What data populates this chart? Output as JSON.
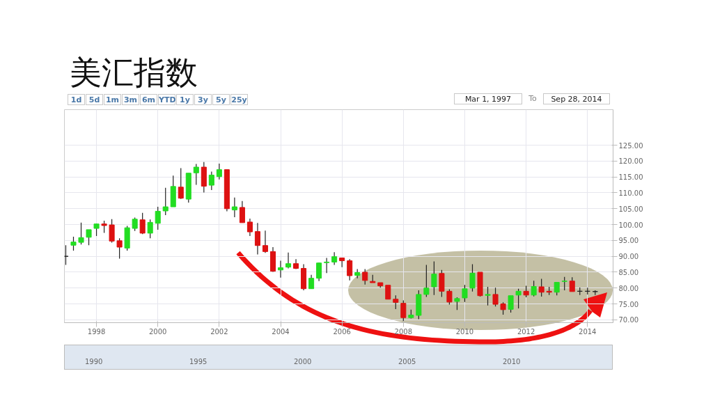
{
  "chart_data": {
    "type": "candlestick",
    "title": "美汇指数",
    "x": [
      "1997-01",
      "1997-04",
      "1997-07",
      "1997-10",
      "1998-01",
      "1998-04",
      "1998-07",
      "1998-10",
      "1999-01",
      "1999-04",
      "1999-07",
      "1999-10",
      "2000-01",
      "2000-04",
      "2000-07",
      "2000-10",
      "2001-01",
      "2001-04",
      "2001-07",
      "2001-10",
      "2002-01",
      "2002-04",
      "2002-07",
      "2002-10",
      "2003-01",
      "2003-04",
      "2003-07",
      "2003-10",
      "2004-01",
      "2004-04",
      "2004-07",
      "2004-10",
      "2005-01",
      "2005-04",
      "2005-07",
      "2005-10",
      "2006-01",
      "2006-04",
      "2006-07",
      "2006-10",
      "2007-01",
      "2007-04",
      "2007-07",
      "2007-10",
      "2008-01",
      "2008-04",
      "2008-07",
      "2008-10",
      "2009-01",
      "2009-04",
      "2009-07",
      "2009-10",
      "2010-01",
      "2010-04",
      "2010-07",
      "2010-10",
      "2011-01",
      "2011-04",
      "2011-07",
      "2011-10",
      "2012-01",
      "2012-04",
      "2012-07",
      "2012-10",
      "2013-01",
      "2013-04",
      "2013-07",
      "2013-10",
      "2014-01",
      "2014-04"
    ],
    "ohlc": [
      [
        90.0,
        93.5,
        87.3,
        90.0
      ],
      [
        93.5,
        96.2,
        91.8,
        94.5
      ],
      [
        94.4,
        100.6,
        93.7,
        95.9
      ],
      [
        96.0,
        98.4,
        93.5,
        98.4
      ],
      [
        98.8,
        100.3,
        96.4,
        100.2
      ],
      [
        100.2,
        101.2,
        97.4,
        99.7
      ],
      [
        99.9,
        101.7,
        94.3,
        94.8
      ],
      [
        94.9,
        95.7,
        89.3,
        92.9
      ],
      [
        92.6,
        99.6,
        91.8,
        99.0
      ],
      [
        98.8,
        102.2,
        98.0,
        101.7
      ],
      [
        101.5,
        103.7,
        97.0,
        97.3
      ],
      [
        97.3,
        101.6,
        95.7,
        100.7
      ],
      [
        100.4,
        105.6,
        98.4,
        104.2
      ],
      [
        104.3,
        111.6,
        103.0,
        105.6
      ],
      [
        105.6,
        115.4,
        105.6,
        112.0
      ],
      [
        111.8,
        117.8,
        108.1,
        108.3
      ],
      [
        108.0,
        116.2,
        106.9,
        116.2
      ],
      [
        116.3,
        119.1,
        112.5,
        118.1
      ],
      [
        118.1,
        119.7,
        110.1,
        112.1
      ],
      [
        112.4,
        116.7,
        110.9,
        115.6
      ],
      [
        115.1,
        119.2,
        114.2,
        117.3
      ],
      [
        117.3,
        117.3,
        104.2,
        105.0
      ],
      [
        104.6,
        108.5,
        102.3,
        105.6
      ],
      [
        105.4,
        107.4,
        100.6,
        100.6
      ],
      [
        100.8,
        101.9,
        96.4,
        97.7
      ],
      [
        97.8,
        100.5,
        90.6,
        93.4
      ],
      [
        93.4,
        98.1,
        91.1,
        91.5
      ],
      [
        91.5,
        92.9,
        85.1,
        85.3
      ],
      [
        85.7,
        88.6,
        83.3,
        86.4
      ],
      [
        86.6,
        91.2,
        86.2,
        87.7
      ],
      [
        87.7,
        89.1,
        86.0,
        86.2
      ],
      [
        86.2,
        87.5,
        79.3,
        79.8
      ],
      [
        79.8,
        84.2,
        79.8,
        83.1
      ],
      [
        83.1,
        88.0,
        82.2,
        87.9
      ],
      [
        88.0,
        89.5,
        84.7,
        88.2
      ],
      [
        88.2,
        91.3,
        87.3,
        89.9
      ],
      [
        89.5,
        89.5,
        86.6,
        88.6
      ],
      [
        88.6,
        89.1,
        82.4,
        83.9
      ],
      [
        84.0,
        86.0,
        83.1,
        84.9
      ],
      [
        85.0,
        86.0,
        81.1,
        82.4
      ],
      [
        82.1,
        84.2,
        81.7,
        81.7
      ],
      [
        81.7,
        81.7,
        80.1,
        80.7
      ],
      [
        80.9,
        80.9,
        76.5,
        76.5
      ],
      [
        76.5,
        77.7,
        73.4,
        75.5
      ],
      [
        75.2,
        76.1,
        69.6,
        70.7
      ],
      [
        70.7,
        73.2,
        70.4,
        71.5
      ],
      [
        71.4,
        79.3,
        70.2,
        78.0
      ],
      [
        78.0,
        87.3,
        77.2,
        80.0
      ],
      [
        80.4,
        88.4,
        77.8,
        84.4
      ],
      [
        84.6,
        85.7,
        77.2,
        79.0
      ],
      [
        79.0,
        79.6,
        74.8,
        75.6
      ],
      [
        75.8,
        77.1,
        73.1,
        76.7
      ],
      [
        76.9,
        81.0,
        75.6,
        79.8
      ],
      [
        80.0,
        87.5,
        78.9,
        84.7
      ],
      [
        85.0,
        85.0,
        77.3,
        77.6
      ],
      [
        77.7,
        80.4,
        74.5,
        78.0
      ],
      [
        78.0,
        80.1,
        74.2,
        74.9
      ],
      [
        75.0,
        75.5,
        71.6,
        73.2
      ],
      [
        73.3,
        77.6,
        72.3,
        77.6
      ],
      [
        77.8,
        79.8,
        73.6,
        79.0
      ],
      [
        79.0,
        80.7,
        77.1,
        77.8
      ],
      [
        77.8,
        82.3,
        77.4,
        80.5
      ],
      [
        80.4,
        82.9,
        77.3,
        78.7
      ],
      [
        79.0,
        80.4,
        77.8,
        78.7
      ],
      [
        78.7,
        81.8,
        77.7,
        81.8
      ],
      [
        82.1,
        83.5,
        79.3,
        82.2
      ],
      [
        82.2,
        83.4,
        78.9,
        78.9
      ],
      [
        79.0,
        80.2,
        77.8,
        79.0
      ],
      [
        79.0,
        80.1,
        78.0,
        79.0
      ],
      [
        78.9,
        79.3,
        77.8,
        78.9
      ]
    ],
    "colors": [
      "#222222",
      "#22dd22",
      "#22dd22",
      "#22dd22",
      "#22dd22",
      "#dd1111",
      "#dd1111",
      "#dd1111",
      "#22dd22",
      "#22dd22",
      "#dd1111",
      "#22dd22",
      "#22dd22",
      "#22dd22",
      "#22dd22",
      "#dd1111",
      "#22dd22",
      "#22dd22",
      "#dd1111",
      "#22dd22",
      "#22dd22",
      "#dd1111",
      "#22dd22",
      "#dd1111",
      "#dd1111",
      "#dd1111",
      "#dd1111",
      "#dd1111",
      "#22dd22",
      "#22dd22",
      "#dd1111",
      "#dd1111",
      "#22dd22",
      "#22dd22",
      "#22dd22",
      "#22dd22",
      "#dd1111",
      "#dd1111",
      "#22dd22",
      "#dd1111",
      "#dd1111",
      "#dd1111",
      "#dd1111",
      "#dd1111",
      "#dd1111",
      "#22dd22",
      "#22dd22",
      "#22dd22",
      "#22dd22",
      "#dd1111",
      "#dd1111",
      "#22dd22",
      "#22dd22",
      "#22dd22",
      "#dd1111",
      "#22dd22",
      "#dd1111",
      "#dd1111",
      "#22dd22",
      "#22dd22",
      "#dd1111",
      "#22dd22",
      "#dd1111",
      "#dd1111",
      "#22dd22",
      "#22dd22",
      "#dd1111",
      "#222222",
      "#222222",
      "#222222"
    ],
    "xlim": [
      "1996-12-15",
      "2014-11-01"
    ],
    "xticks": [
      "1998",
      "2000",
      "2002",
      "2004",
      "2006",
      "2008",
      "2010",
      "2012",
      "2014"
    ],
    "ylim": [
      69.1,
      136.2
    ],
    "yticks": [
      {
        "value": 70,
        "label": "70.00"
      },
      {
        "value": 75,
        "label": "75.00"
      },
      {
        "value": 80,
        "label": "80.00"
      },
      {
        "value": 85,
        "label": "85.00"
      },
      {
        "value": 90,
        "label": "90.00"
      },
      {
        "value": 95,
        "label": "95.00"
      },
      {
        "value": 100,
        "label": "100.00"
      },
      {
        "value": 105,
        "label": "105.00"
      },
      {
        "value": 110,
        "label": "110.00"
      },
      {
        "value": 115,
        "label": "115.00"
      },
      {
        "value": 120,
        "label": "120.00"
      },
      {
        "value": 125,
        "label": "125.00"
      }
    ],
    "grid": true,
    "annotations": [
      "1d",
      "5d",
      "1m",
      "3m",
      "6m",
      "YTD",
      "1y",
      "3y",
      "5y",
      "25y",
      "Mar 1, 1997",
      "To",
      "Sep 28, 2014",
      "1990",
      "1995",
      "2000",
      "2005",
      "2010"
    ]
  }
}
